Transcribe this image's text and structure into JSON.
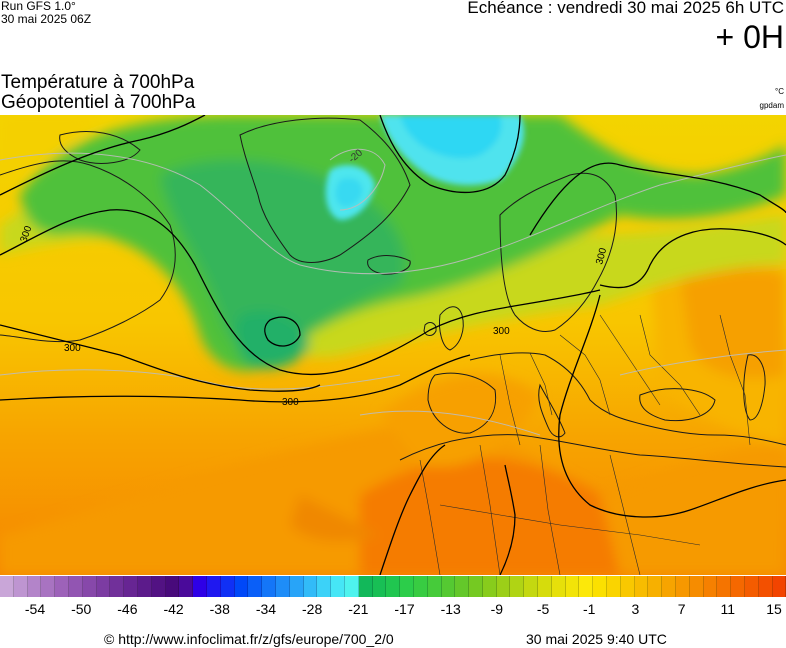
{
  "header": {
    "run_model": "Run GFS 1.0°",
    "run_date": "30 mai 2025 06Z",
    "forecast_label": "Echéance : vendredi 30 mai 2025 6h UTC",
    "lead_time": "+ 0H"
  },
  "titles": {
    "line1": "Température à 700hPa",
    "line2": "Géopotentiel à 700hPa"
  },
  "units": {
    "temperature": "°C",
    "geopotential": "gpdam"
  },
  "map": {
    "contour_labels": [
      {
        "text": "300"
      },
      {
        "text": "300"
      },
      {
        "text": "300"
      },
      {
        "text": "300"
      },
      {
        "text": "300"
      },
      {
        "text": "-20"
      }
    ]
  },
  "legend": {
    "ticks": [
      "-54",
      "-50",
      "-46",
      "-42",
      "-38",
      "-34",
      "-28",
      "-21",
      "-17",
      "-13",
      "-9",
      "-5",
      "-1",
      "3",
      "7",
      "11",
      "15"
    ],
    "colors": [
      "#c9a6d8",
      "#be95d1",
      "#b384c9",
      "#a873c1",
      "#9d62b9",
      "#9255b2",
      "#8748aa",
      "#7c3ca2",
      "#71309a",
      "#672593",
      "#5c1b8b",
      "#521283",
      "#480a7b",
      "#4a0a9a",
      "#2e00e6",
      "#1f18f0",
      "#1030f5",
      "#0048f8",
      "#0a5ff8",
      "#1476f8",
      "#1e8df8",
      "#28a4f8",
      "#32bbf8",
      "#3cd2f8",
      "#46e6f6",
      "#4ef3ee",
      "#12b85a",
      "#18bf55",
      "#20c650",
      "#2ccd4a",
      "#38cc42",
      "#46cb3a",
      "#55c932",
      "#64c82a",
      "#75c922",
      "#88cc1c",
      "#9ccf18",
      "#b0d414",
      "#c4d810",
      "#d6dc0c",
      "#e6e00a",
      "#f2e408",
      "#fce80a",
      "#fbe000",
      "#fad400",
      "#f9c800",
      "#f8bc00",
      "#f7b000",
      "#f7a400",
      "#f79800",
      "#f68c00",
      "#f68000",
      "#f57400",
      "#f56800",
      "#f45c00",
      "#f35000",
      "#f24400"
    ]
  },
  "footer": {
    "credit": "© http://www.infoclimat.fr/z/gfs/europe/700_2/0",
    "timestamp": "30 mai 2025  9:40 UTC"
  }
}
